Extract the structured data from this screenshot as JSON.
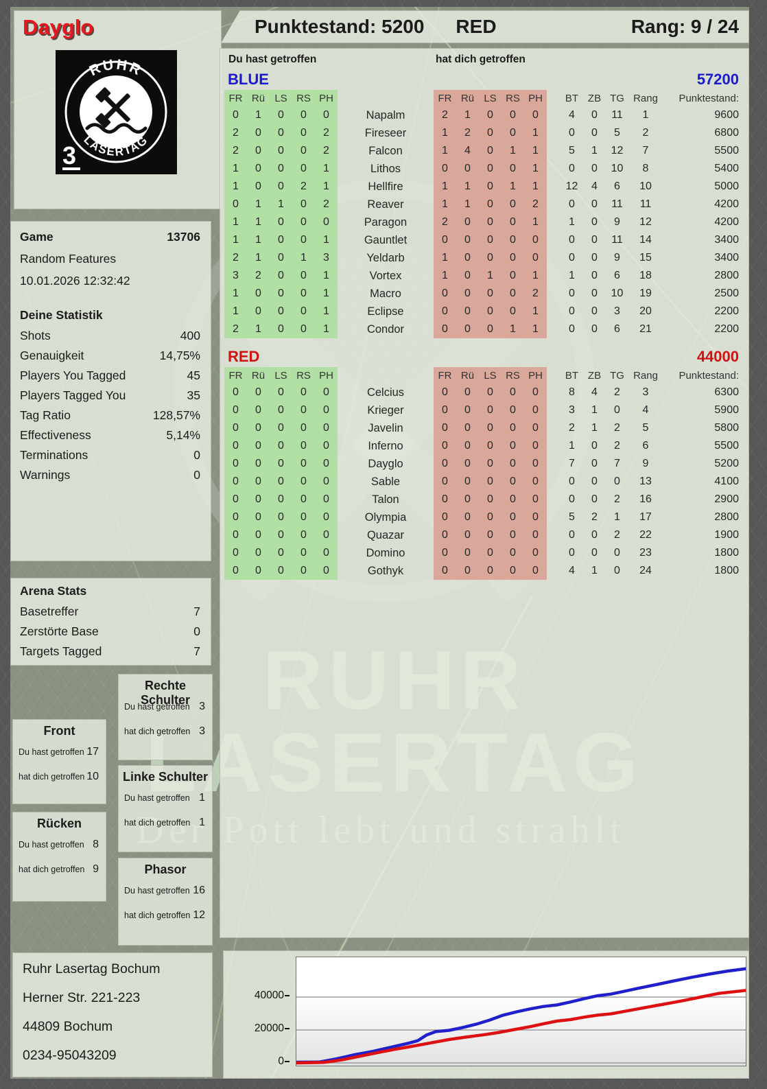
{
  "header": {
    "player_name": "Dayglo",
    "punktestand": "Punktestand: 5200",
    "team": "RED",
    "rang": "Rang: 9 / 24"
  },
  "logo": {
    "arc_top": "RUHR",
    "arc_bottom": "LASERTAG",
    "corner_number": "3"
  },
  "game_info": {
    "game_label": "Game",
    "game_number": "13706",
    "mode": "Random Features",
    "datetime": "10.01.2026 12:32:42"
  },
  "deine_statistik": {
    "title": "Deine Statistik",
    "rows": [
      {
        "label": "Shots",
        "value": "400"
      },
      {
        "label": "Genauigkeit",
        "value": "14,75%"
      },
      {
        "label": "Players You Tagged",
        "value": "45"
      },
      {
        "label": "Players Tagged You",
        "value": "35"
      },
      {
        "label": "Tag Ratio",
        "value": "128,57%"
      },
      {
        "label": "Effectiveness",
        "value": "5,14%"
      },
      {
        "label": "Terminations",
        "value": "0"
      },
      {
        "label": "Warnings",
        "value": "0"
      }
    ]
  },
  "arena_stats": {
    "title": "Arena Stats",
    "rows": [
      {
        "label": "Basetreffer",
        "value": "7"
      },
      {
        "label": "Zerstörte Base",
        "value": "0"
      },
      {
        "label": "Targets Tagged",
        "value": "7"
      }
    ]
  },
  "hit_zones": {
    "du_label": "Du hast getroffen",
    "dich_label": "hat dich getroffen",
    "boxes": [
      {
        "title": "Front",
        "du": "17",
        "dich": "10"
      },
      {
        "title": "Rücken",
        "du": "8",
        "dich": "9"
      },
      {
        "title": "Rechte Schulter",
        "du": "3",
        "dich": "3"
      },
      {
        "title": "Linke Schulter",
        "du": "1",
        "dich": "1"
      },
      {
        "title": "Phasor",
        "du": "16",
        "dich": "12"
      }
    ]
  },
  "scoreboard": {
    "du_hast_label": "Du hast getroffen",
    "hat_dich_label": "hat dich getroffen",
    "hit_columns": [
      "FR",
      "Rü",
      "LS",
      "RS",
      "PH"
    ],
    "stat_columns": [
      "BT",
      "ZB",
      "TG",
      "Rang",
      "Punktestand:"
    ],
    "teams": [
      {
        "name": "BLUE",
        "color": "#1b1ace",
        "total": "57200",
        "players": [
          {
            "name": "Napalm",
            "du": [
              0,
              1,
              0,
              0,
              0
            ],
            "dich": [
              2,
              1,
              0,
              0,
              0
            ],
            "bt": 4,
            "zb": 0,
            "tg": 11,
            "rang": 1,
            "punkte": "9600"
          },
          {
            "name": "Fireseer",
            "du": [
              2,
              0,
              0,
              0,
              2
            ],
            "dich": [
              1,
              2,
              0,
              0,
              1
            ],
            "bt": 0,
            "zb": 0,
            "tg": 5,
            "rang": 2,
            "punkte": "6800"
          },
          {
            "name": "Falcon",
            "du": [
              2,
              0,
              0,
              0,
              2
            ],
            "dich": [
              1,
              4,
              0,
              1,
              1
            ],
            "bt": 5,
            "zb": 1,
            "tg": 12,
            "rang": 7,
            "punkte": "5500"
          },
          {
            "name": "Lithos",
            "du": [
              1,
              0,
              0,
              0,
              1
            ],
            "dich": [
              0,
              0,
              0,
              0,
              1
            ],
            "bt": 0,
            "zb": 0,
            "tg": 10,
            "rang": 8,
            "punkte": "5400"
          },
          {
            "name": "Hellfire",
            "du": [
              1,
              0,
              0,
              2,
              1
            ],
            "dich": [
              1,
              1,
              0,
              1,
              1
            ],
            "bt": 12,
            "zb": 4,
            "tg": 6,
            "rang": 10,
            "punkte": "5000"
          },
          {
            "name": "Reaver",
            "du": [
              0,
              1,
              1,
              0,
              2
            ],
            "dich": [
              1,
              1,
              0,
              0,
              2
            ],
            "bt": 0,
            "zb": 0,
            "tg": 11,
            "rang": 11,
            "punkte": "4200"
          },
          {
            "name": "Paragon",
            "du": [
              1,
              1,
              0,
              0,
              0
            ],
            "dich": [
              2,
              0,
              0,
              0,
              1
            ],
            "bt": 1,
            "zb": 0,
            "tg": 9,
            "rang": 12,
            "punkte": "4200"
          },
          {
            "name": "Gauntlet",
            "du": [
              1,
              1,
              0,
              0,
              1
            ],
            "dich": [
              0,
              0,
              0,
              0,
              0
            ],
            "bt": 0,
            "zb": 0,
            "tg": 11,
            "rang": 14,
            "punkte": "3400"
          },
          {
            "name": "Yeldarb",
            "du": [
              2,
              1,
              0,
              1,
              3
            ],
            "dich": [
              1,
              0,
              0,
              0,
              0
            ],
            "bt": 0,
            "zb": 0,
            "tg": 9,
            "rang": 15,
            "punkte": "3400"
          },
          {
            "name": "Vortex",
            "du": [
              3,
              2,
              0,
              0,
              1
            ],
            "dich": [
              1,
              0,
              1,
              0,
              1
            ],
            "bt": 1,
            "zb": 0,
            "tg": 6,
            "rang": 18,
            "punkte": "2800"
          },
          {
            "name": "Macro",
            "du": [
              1,
              0,
              0,
              0,
              1
            ],
            "dich": [
              0,
              0,
              0,
              0,
              2
            ],
            "bt": 0,
            "zb": 0,
            "tg": 10,
            "rang": 19,
            "punkte": "2500"
          },
          {
            "name": "Eclipse",
            "du": [
              1,
              0,
              0,
              0,
              1
            ],
            "dich": [
              0,
              0,
              0,
              0,
              1
            ],
            "bt": 0,
            "zb": 0,
            "tg": 3,
            "rang": 20,
            "punkte": "2200"
          },
          {
            "name": "Condor",
            "du": [
              2,
              1,
              0,
              0,
              1
            ],
            "dich": [
              0,
              0,
              0,
              1,
              1
            ],
            "bt": 0,
            "zb": 0,
            "tg": 6,
            "rang": 21,
            "punkte": "2200"
          }
        ]
      },
      {
        "name": "RED",
        "color": "#d01212",
        "total": "44000",
        "players": [
          {
            "name": "Celcius",
            "du": [
              0,
              0,
              0,
              0,
              0
            ],
            "dich": [
              0,
              0,
              0,
              0,
              0
            ],
            "bt": 8,
            "zb": 4,
            "tg": 2,
            "rang": 3,
            "punkte": "6300"
          },
          {
            "name": "Krieger",
            "du": [
              0,
              0,
              0,
              0,
              0
            ],
            "dich": [
              0,
              0,
              0,
              0,
              0
            ],
            "bt": 3,
            "zb": 1,
            "tg": 0,
            "rang": 4,
            "punkte": "5900"
          },
          {
            "name": "Javelin",
            "du": [
              0,
              0,
              0,
              0,
              0
            ],
            "dich": [
              0,
              0,
              0,
              0,
              0
            ],
            "bt": 2,
            "zb": 1,
            "tg": 2,
            "rang": 5,
            "punkte": "5800"
          },
          {
            "name": "Inferno",
            "du": [
              0,
              0,
              0,
              0,
              0
            ],
            "dich": [
              0,
              0,
              0,
              0,
              0
            ],
            "bt": 1,
            "zb": 0,
            "tg": 2,
            "rang": 6,
            "punkte": "5500"
          },
          {
            "name": "Dayglo",
            "du": [
              0,
              0,
              0,
              0,
              0
            ],
            "dich": [
              0,
              0,
              0,
              0,
              0
            ],
            "bt": 7,
            "zb": 0,
            "tg": 7,
            "rang": 9,
            "punkte": "5200"
          },
          {
            "name": "Sable",
            "du": [
              0,
              0,
              0,
              0,
              0
            ],
            "dich": [
              0,
              0,
              0,
              0,
              0
            ],
            "bt": 0,
            "zb": 0,
            "tg": 0,
            "rang": 13,
            "punkte": "4100"
          },
          {
            "name": "Talon",
            "du": [
              0,
              0,
              0,
              0,
              0
            ],
            "dich": [
              0,
              0,
              0,
              0,
              0
            ],
            "bt": 0,
            "zb": 0,
            "tg": 2,
            "rang": 16,
            "punkte": "2900"
          },
          {
            "name": "Olympia",
            "du": [
              0,
              0,
              0,
              0,
              0
            ],
            "dich": [
              0,
              0,
              0,
              0,
              0
            ],
            "bt": 5,
            "zb": 2,
            "tg": 1,
            "rang": 17,
            "punkte": "2800"
          },
          {
            "name": "Quazar",
            "du": [
              0,
              0,
              0,
              0,
              0
            ],
            "dich": [
              0,
              0,
              0,
              0,
              0
            ],
            "bt": 0,
            "zb": 0,
            "tg": 2,
            "rang": 22,
            "punkte": "1900"
          },
          {
            "name": "Domino",
            "du": [
              0,
              0,
              0,
              0,
              0
            ],
            "dich": [
              0,
              0,
              0,
              0,
              0
            ],
            "bt": 0,
            "zb": 0,
            "tg": 0,
            "rang": 23,
            "punkte": "1800"
          },
          {
            "name": "Gothyk",
            "du": [
              0,
              0,
              0,
              0,
              0
            ],
            "dich": [
              0,
              0,
              0,
              0,
              0
            ],
            "bt": 4,
            "zb": 1,
            "tg": 0,
            "rang": 24,
            "punkte": "1800"
          }
        ]
      }
    ]
  },
  "address": {
    "lines": [
      "Ruhr Lasertag Bochum",
      "Herner Str. 221-223",
      "44809 Bochum",
      "0234-95043209"
    ]
  },
  "watermark": {
    "line1": "RUHR",
    "line2": "LASERTAG",
    "tagline": "Der Pott lebt und strahlt"
  },
  "chart_data": {
    "type": "line",
    "title": "",
    "xlabel": "",
    "ylabel": "",
    "yticks": [
      0,
      20000,
      40000
    ],
    "ylim": [
      0,
      64000
    ],
    "xlim": [
      0,
      100
    ],
    "grid": true,
    "legend": "none",
    "description": "Cumulative team score over game time; blue ends at 57200, red ends at 44000",
    "series": [
      {
        "name": "BLUE",
        "color": "#2020cc",
        "x": [
          0,
          5,
          9,
          13,
          17,
          21,
          25,
          27,
          29,
          31,
          34,
          37,
          40,
          43,
          46,
          49,
          52,
          55,
          58,
          61,
          64,
          67,
          70,
          73,
          76,
          80,
          84,
          88,
          92,
          96,
          100
        ],
        "y": [
          400,
          500,
          2500,
          5000,
          7000,
          9500,
          12000,
          13500,
          17000,
          19000,
          19800,
          21500,
          23500,
          26000,
          29000,
          31000,
          32800,
          34300,
          35200,
          37000,
          39000,
          40800,
          41800,
          43500,
          45300,
          47500,
          49800,
          52000,
          54000,
          55800,
          57200
        ]
      },
      {
        "name": "RED",
        "color": "#dd1111",
        "x": [
          0,
          6,
          10,
          14,
          18,
          22,
          26,
          30,
          34,
          38,
          42,
          45,
          48,
          52,
          55,
          58,
          61,
          64,
          67,
          70,
          74,
          78,
          82,
          86,
          90,
          94,
          100
        ],
        "y": [
          0,
          300,
          1800,
          4000,
          6200,
          8300,
          10200,
          12200,
          14200,
          15800,
          17200,
          18500,
          20000,
          22000,
          23800,
          25400,
          26300,
          27800,
          29000,
          29800,
          31800,
          33800,
          35800,
          37800,
          40000,
          42200,
          44000
        ]
      }
    ]
  }
}
